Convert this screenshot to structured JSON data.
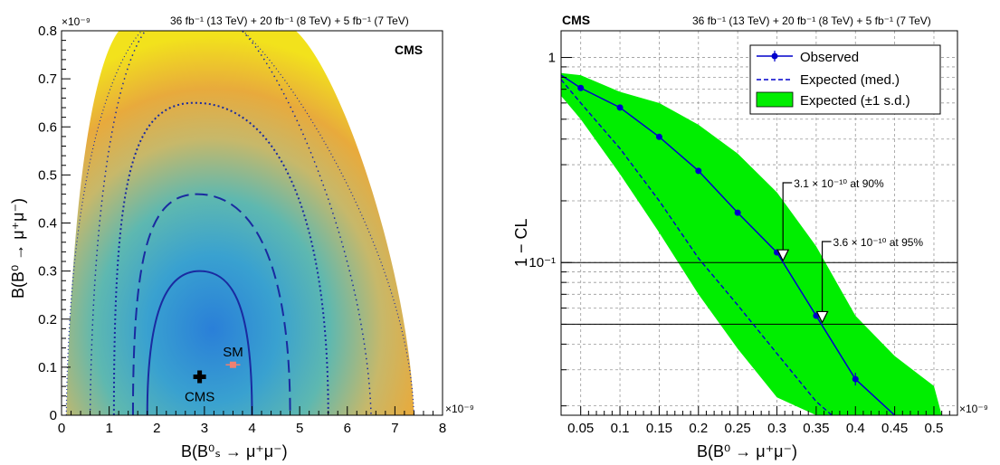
{
  "header_text": "36 fb⁻¹ (13 TeV) + 20 fb⁻¹ (8 TeV) + 5 fb⁻¹ (7 TeV)",
  "cms_label": "CMS",
  "exponent_label": "×10⁻⁹",
  "colors": {
    "observed": "#0000cc",
    "band": "#00ee00",
    "contour": "#1a2aa0",
    "sm_marker": "#f08070",
    "best_fit": "#000000"
  },
  "chart_data": [
    {
      "type": "heatmap",
      "title": "",
      "xlabel": "B(B⁰ₛ → μ⁺μ⁻)",
      "ylabel": "B(B⁰ → μ⁺μ⁻)",
      "xlim": [
        0,
        8
      ],
      "ylim": [
        0,
        0.8
      ],
      "x_ticks": [
        "0",
        "1",
        "2",
        "3",
        "4",
        "5",
        "6",
        "7",
        "8"
      ],
      "y_ticks": [
        "0",
        "0.1",
        "0.2",
        "0.3",
        "0.4",
        "0.5",
        "0.6",
        "0.7",
        "0.8"
      ],
      "scale": "×10⁻⁹",
      "best_fit": {
        "label": "CMS",
        "x": 2.9,
        "y": 0.08
      },
      "sm_point": {
        "label": "SM",
        "x": 3.6,
        "y": 0.105
      },
      "contours": [
        {
          "style": "solid",
          "center": [
            2.9,
            0.12
          ],
          "x_range": [
            1.8,
            4.0
          ],
          "y_max": 0.3
        },
        {
          "style": "dashed",
          "center": [
            2.85,
            0.16
          ],
          "x_range": [
            1.5,
            4.8
          ],
          "y_max": 0.46
        },
        {
          "style": "dense-dotted",
          "center": [
            2.8,
            0.2
          ],
          "x_range": [
            1.1,
            5.6
          ],
          "y_max": 0.65
        },
        {
          "style": "sparse-dotted",
          "center": [
            2.8,
            0.3
          ],
          "x_range": [
            0.6,
            6.5
          ],
          "y_max": 0.8
        },
        {
          "style": "outer-dotted",
          "center": [
            2.8,
            0.3
          ],
          "x_range": [
            0.1,
            7.4
          ],
          "y_max": 0.8
        }
      ],
      "grid": false
    },
    {
      "type": "line",
      "title": "",
      "xlabel": "B(B⁰ → μ⁺μ⁻)",
      "ylabel": "1 − CL",
      "xlim": [
        0.025,
        0.53
      ],
      "ylim": [
        0.018,
        1.35
      ],
      "log_y": true,
      "grid": true,
      "scale": "×10⁻⁹",
      "x_ticks": [
        "0.05",
        "0.1",
        "0.15",
        "0.2",
        "0.25",
        "0.3",
        "0.35",
        "0.4",
        "0.45",
        "0.5"
      ],
      "y_ticks": [
        "1",
        "10⁻¹"
      ],
      "legend_position": "top-right",
      "series": [
        {
          "name": "Observed",
          "x": [
            0.025,
            0.05,
            0.1,
            0.15,
            0.2,
            0.25,
            0.3,
            0.35,
            0.4,
            0.45
          ],
          "y": [
            0.82,
            0.71,
            0.57,
            0.41,
            0.28,
            0.175,
            0.112,
            0.055,
            0.027,
            0.018
          ],
          "points_x": [
            0.05,
            0.1,
            0.15,
            0.2,
            0.25,
            0.3,
            0.35,
            0.4
          ],
          "points_y": [
            0.71,
            0.57,
            0.41,
            0.28,
            0.175,
            0.112,
            0.055,
            0.027
          ]
        },
        {
          "name": "Expected (med.)",
          "x": [
            0.025,
            0.05,
            0.1,
            0.15,
            0.2,
            0.25,
            0.3,
            0.35,
            0.37
          ],
          "y": [
            0.78,
            0.6,
            0.36,
            0.2,
            0.105,
            0.062,
            0.036,
            0.021,
            0.018
          ]
        },
        {
          "name": "Expected (±1 s.d.)",
          "band_x": [
            0.025,
            0.05,
            0.1,
            0.15,
            0.2,
            0.25,
            0.3,
            0.35,
            0.4,
            0.45,
            0.5,
            0.51
          ],
          "band_upper": [
            0.84,
            0.82,
            0.68,
            0.6,
            0.47,
            0.34,
            0.22,
            0.12,
            0.055,
            0.035,
            0.025,
            0.018
          ],
          "band_lower": [
            0.65,
            0.5,
            0.27,
            0.14,
            0.07,
            0.038,
            0.022,
            0.018,
            0.018,
            0.018,
            0.018,
            0.018
          ]
        }
      ],
      "reference_lines": [
        0.1,
        0.05
      ],
      "annotations": [
        {
          "text": "3.1 × 10⁻¹⁰ at 90%",
          "x": 0.31,
          "y": 0.1
        },
        {
          "text": "3.6 × 10⁻¹⁰ at 95%",
          "x": 0.36,
          "y": 0.05
        }
      ]
    }
  ]
}
